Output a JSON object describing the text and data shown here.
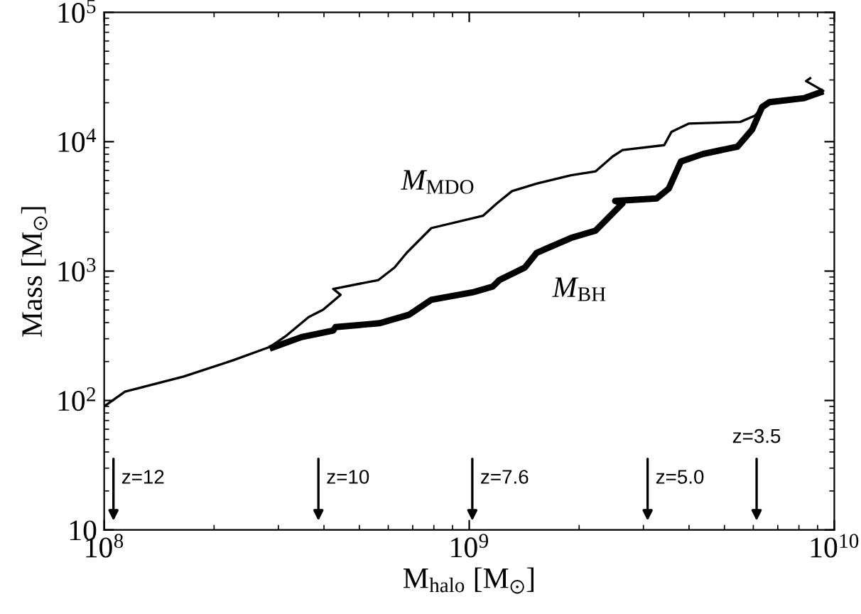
{
  "chart_data": {
    "type": "line",
    "xlabel": "M$_{halo}$ [M$_{⊙}$]",
    "ylabel": "Mass [M$_{⊙}$]",
    "log": "xy",
    "xlim": [
      100000000.0,
      10000000000.0
    ],
    "ylim": [
      10,
      100000
    ],
    "xticks": [
      {
        "value": 100000000.0,
        "label": "10$^{8}$"
      },
      {
        "value": 1000000000.0,
        "label": "10$^{9}$"
      },
      {
        "value": 10000000000.0,
        "label": "10$^{10}$"
      }
    ],
    "yticks": [
      10,
      {
        "value": 100,
        "label": "10$^{2}$"
      },
      {
        "value": 1000,
        "label": "10$^{3}$"
      },
      {
        "value": 10000,
        "label": "10$^{4}$"
      },
      {
        "value": 100000,
        "label": "10$^{5}$"
      }
    ],
    "grid": false,
    "legend": false,
    "marker": "none",
    "line_style": "solid",
    "series": [
      {
        "name": "M$_{MDO}$",
        "color": "#000000",
        "x": [
          100000000.0,
          114000000.0,
          165000000.0,
          225000000.0,
          284000000.0,
          316000000.0,
          363000000.0,
          398000000.0,
          444000000.0,
          424000000.0,
          564000000.0,
          624000000.0,
          674000000.0,
          787000000.0,
          1090000000.0,
          1190000000.0,
          1310000000.0,
          1530000000.0,
          1900000000.0,
          2220000000.0,
          2470000000.0,
          2630000000.0,
          3420000000.0,
          3580000000.0,
          3990000000.0,
          5520000000.0,
          6060000000.0,
          6550000000.0,
          8260000000.0,
          9330000000.0,
          8370000000.0,
          8640000000.0
        ],
        "values": [
          90,
          117,
          153,
          204,
          259,
          318,
          441,
          503,
          655,
          728,
          853,
          1064,
          1384,
          2148,
          2673,
          3334,
          4150,
          4742,
          5500,
          5900,
          7680,
          8610,
          9400,
          11900,
          13800,
          14200,
          15900,
          19800,
          21100,
          24700,
          29400,
          31300
        ]
      },
      {
        "name": "M$_{BH}$",
        "color": "#000000",
        "x": [
          284000000.0,
          347000000.0,
          424000000.0,
          430000000.0,
          569000000.0,
          684000000.0,
          787000000.0,
          1020000000.0,
          1160000000.0,
          1210000000.0,
          1420000000.0,
          1530000000.0,
          1900000000.0,
          2220000000.0,
          2630000000.0,
          2510000000.0,
          3260000000.0,
          3520000000.0,
          3800000000.0,
          4370000000.0,
          5430000000.0,
          5960000000.0,
          6340000000.0,
          6640000000.0,
          8260000000.0,
          9330000000.0
        ],
        "values": [
          252,
          309,
          347,
          369,
          396,
          460,
          600,
          684,
          760,
          853,
          1064,
          1384,
          1803,
          2057,
          3334,
          3483,
          3640,
          4340,
          7030,
          8040,
          9160,
          12450,
          18500,
          20200,
          21700,
          24500
        ]
      }
    ],
    "annotations": [
      "z=12",
      "z=10",
      "z=7.6",
      "z=5.0",
      "z=3.5"
    ]
  }
}
